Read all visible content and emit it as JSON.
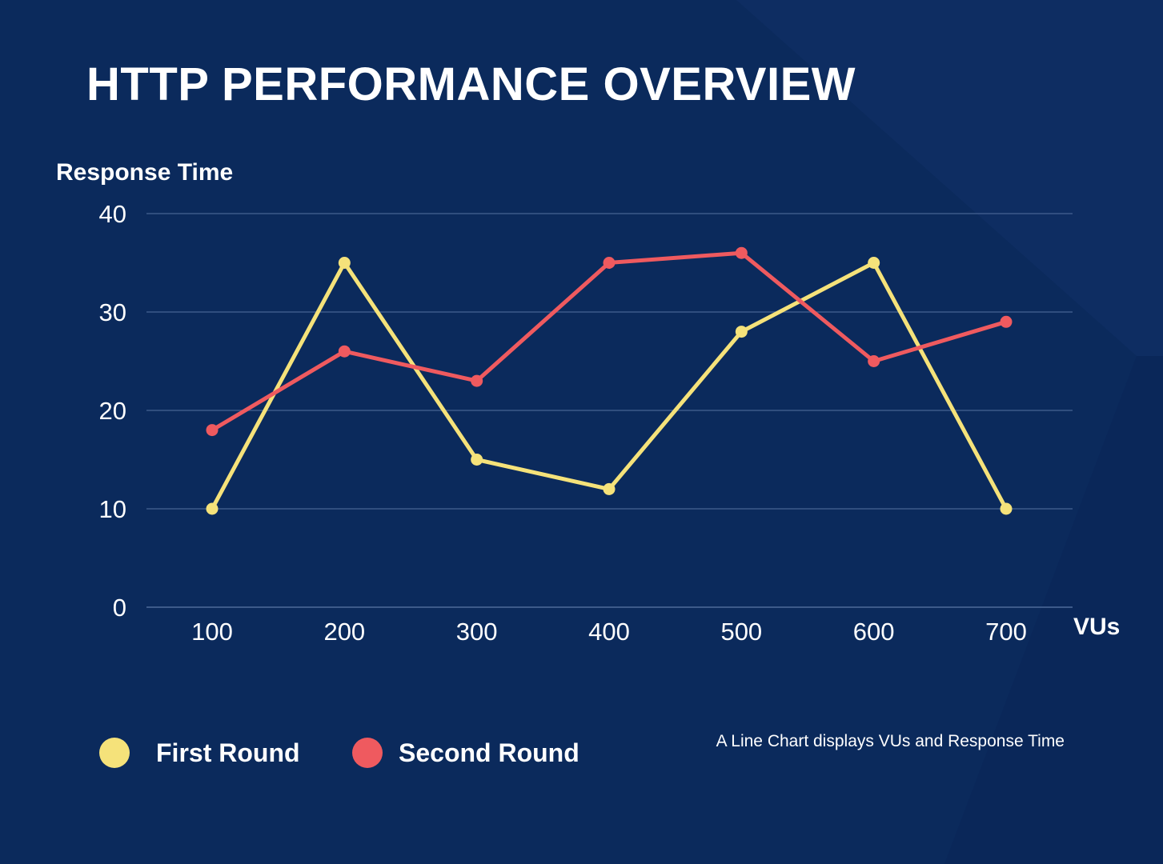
{
  "title": "HTTP PERFORMANCE OVERVIEW",
  "caption": "A Line Chart displays VUs and Response Time",
  "colors": {
    "background": "#0b2a5c",
    "grid": "#3d5a8a",
    "first_round": "#f5e27a",
    "second_round": "#ef5a5f"
  },
  "chart_data": {
    "type": "line",
    "ylabel": "Response Time",
    "xlabel": "VUs",
    "x": [
      100,
      200,
      300,
      400,
      500,
      600,
      700
    ],
    "x_tick_labels": [
      "100",
      "200",
      "300",
      "400",
      "500",
      "600",
      "700"
    ],
    "y_ticks": [
      0,
      10,
      20,
      30,
      40
    ],
    "y_tick_labels": [
      "0",
      "10",
      "20",
      "30",
      "40"
    ],
    "ylim": [
      0,
      40
    ],
    "grid": true,
    "legend_position": "bottom-left",
    "series": [
      {
        "name": "First Round",
        "color": "#f5e27a",
        "values": [
          10,
          35,
          15,
          12,
          28,
          35,
          10
        ]
      },
      {
        "name": "Second Round",
        "color": "#ef5a5f",
        "values": [
          18,
          26,
          23,
          35,
          36,
          25,
          29
        ]
      }
    ]
  }
}
